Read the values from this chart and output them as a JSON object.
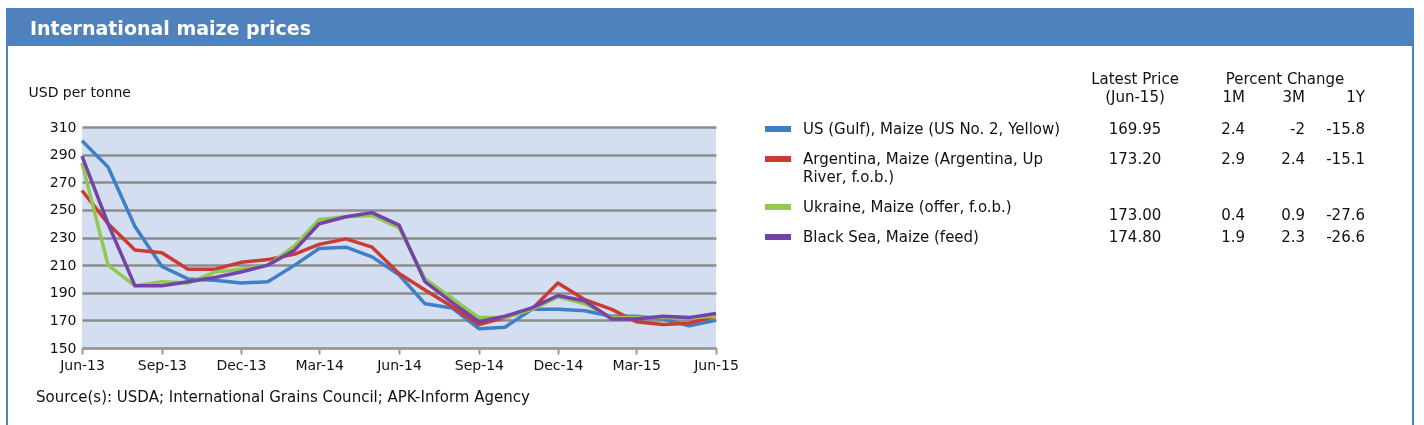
{
  "chart_data": {
    "type": "line",
    "title": "International maize prices",
    "ylabel": "USD per tonne",
    "x": [
      "2013-06",
      "2013-07",
      "2013-08",
      "2013-09",
      "2013-10",
      "2013-11",
      "2013-12",
      "2014-01",
      "2014-02",
      "2014-03",
      "2014-04",
      "2014-05",
      "2014-06",
      "2014-07",
      "2014-08",
      "2014-09",
      "2014-10",
      "2014-11",
      "2014-12",
      "2015-01",
      "2015-02",
      "2015-03",
      "2015-04",
      "2015-05",
      "2015-06"
    ],
    "xlim": [
      "2013-06",
      "2015-06"
    ],
    "xticks": [
      {
        "value": "2013-06",
        "label": "Jun-13"
      },
      {
        "value": "2013-09",
        "label": "Sep-13"
      },
      {
        "value": "2013-12",
        "label": "Dec-13"
      },
      {
        "value": "2014-03",
        "label": "Mar-14"
      },
      {
        "value": "2014-06",
        "label": "Jun-14"
      },
      {
        "value": "2014-09",
        "label": "Sep-14"
      },
      {
        "value": "2014-12",
        "label": "Dec-14"
      },
      {
        "value": "2015-03",
        "label": "Mar-15"
      },
      {
        "value": "2015-06",
        "label": "Jun-15"
      }
    ],
    "ylim": [
      150,
      310
    ],
    "yticks": [
      150,
      170,
      190,
      210,
      230,
      250,
      270,
      290,
      310
    ],
    "grid": "y",
    "legend": "right",
    "line_style": "solid",
    "series": [
      {
        "name": "US (Gulf), Maize (US No. 2, Yellow)",
        "color": "#3f7fc6",
        "values": [
          300,
          281,
          238,
          209,
          200,
          199,
          197,
          198,
          210,
          222,
          223,
          216,
          203,
          182,
          179,
          164,
          165,
          178,
          178,
          177,
          173,
          173,
          171,
          166,
          170
        ]
      },
      {
        "name": "Argentina, Maize (Argentina, Up River, f.o.b.)",
        "color": "#cc3a34",
        "values": [
          264,
          240,
          221,
          219,
          207,
          207,
          212,
          214,
          218,
          225,
          229,
          223,
          204,
          192,
          180,
          167,
          172,
          178,
          197,
          185,
          178,
          169,
          167,
          168,
          173
        ]
      },
      {
        "name": "Ukraine, Maize (offer, f.o.b.)",
        "color": "#92c84e",
        "values": [
          284,
          210,
          195,
          198,
          197,
          205,
          207,
          210,
          224,
          243,
          245,
          246,
          237,
          200,
          186,
          172,
          172,
          178,
          187,
          182,
          172,
          172,
          172,
          172,
          173
        ]
      },
      {
        "name": "Black Sea, Maize (feed)",
        "color": "#7442a8",
        "values": [
          289,
          240,
          195,
          195,
          198,
          201,
          205,
          210,
          221,
          240,
          245,
          248,
          239,
          198,
          183,
          169,
          173,
          179,
          188,
          184,
          171,
          171,
          173,
          172,
          175
        ]
      }
    ],
    "annotations": [
      "Latest Price (Jun-15)",
      "Percent Change",
      "1M",
      "3M",
      "1Y",
      "169.95",
      "2.4",
      "-2",
      "-15.8",
      "173.20",
      "2.9",
      "2.4",
      "-15.1",
      "173.00",
      "0.4",
      "0.9",
      "-27.6",
      "174.80",
      "1.9",
      "2.3",
      "-26.6",
      "Source(s): USDA; International Grains Council; APK-Inform Agency"
    ]
  }
}
